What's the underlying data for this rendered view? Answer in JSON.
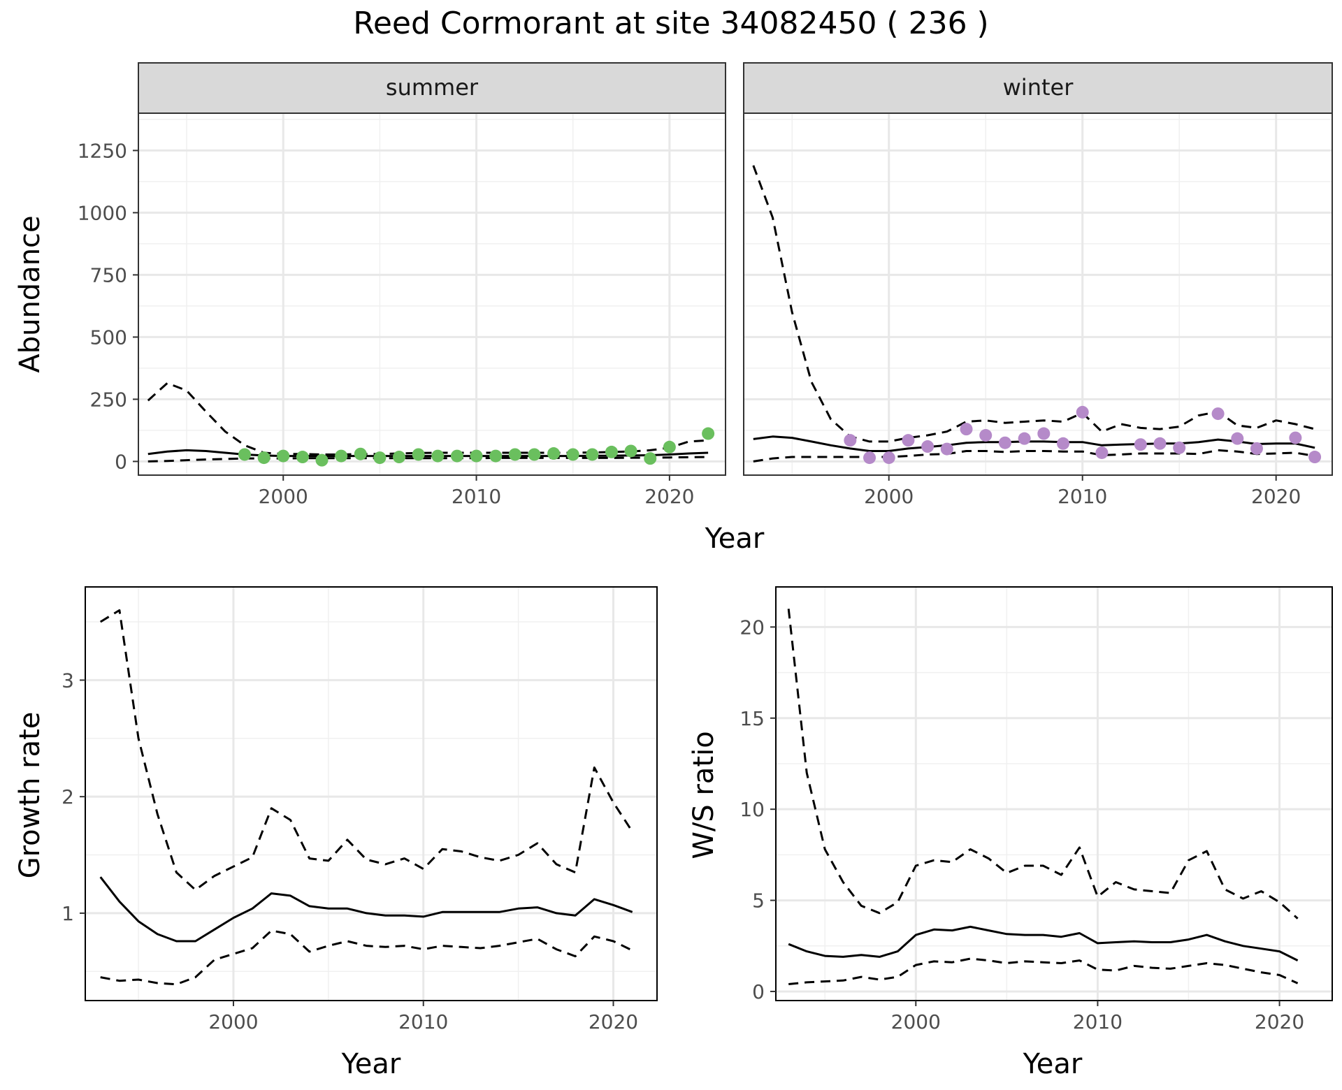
{
  "title": "Reed Cormorant at site 34082450 ( 236 )",
  "top_shared_xlabel": "Year",
  "chart_data": [
    {
      "type": "line",
      "panel": "abundance-summer",
      "strip_label": "summer",
      "ylabel": "Abundance",
      "xlim": [
        1992.5,
        2022.9
      ],
      "ylim": [
        -55,
        1400
      ],
      "x_ticks": [
        2000,
        2010,
        2020
      ],
      "y_ticks": [
        0,
        250,
        500,
        750,
        1000,
        1250
      ],
      "grid": true,
      "point_color": "#6abf5e",
      "series": [
        {
          "role": "mean",
          "style": "solid",
          "x": [
            1993,
            1994,
            1995,
            1996,
            1997,
            1998,
            1999,
            2000,
            2001,
            2002,
            2003,
            2004,
            2005,
            2006,
            2007,
            2008,
            2009,
            2010,
            2011,
            2012,
            2013,
            2014,
            2015,
            2016,
            2017,
            2018,
            2019,
            2020,
            2021,
            2022
          ],
          "y": [
            30,
            40,
            45,
            42,
            35,
            28,
            24,
            22,
            22,
            22,
            22,
            22,
            22,
            22,
            22,
            22,
            22,
            22,
            22,
            22,
            22,
            22,
            22,
            23,
            23,
            24,
            25,
            28,
            32,
            35
          ]
        },
        {
          "role": "upper",
          "style": "dashed",
          "x": [
            1993,
            1994,
            1995,
            1996,
            1997,
            1998,
            1999,
            2000,
            2001,
            2002,
            2003,
            2004,
            2005,
            2006,
            2007,
            2008,
            2009,
            2010,
            2011,
            2012,
            2013,
            2014,
            2015,
            2016,
            2017,
            2018,
            2019,
            2020,
            2021,
            2022
          ],
          "y": [
            245,
            315,
            285,
            200,
            120,
            65,
            35,
            30,
            30,
            28,
            28,
            30,
            30,
            32,
            34,
            35,
            35,
            35,
            35,
            35,
            35,
            35,
            35,
            36,
            38,
            40,
            45,
            55,
            80,
            85
          ]
        },
        {
          "role": "lower",
          "style": "dashed",
          "x": [
            1993,
            1994,
            1995,
            1996,
            1997,
            1998,
            1999,
            2000,
            2001,
            2002,
            2003,
            2004,
            2005,
            2006,
            2007,
            2008,
            2009,
            2010,
            2011,
            2012,
            2013,
            2014,
            2015,
            2016,
            2017,
            2018,
            2019,
            2020,
            2021,
            2022
          ],
          "y": [
            0,
            2,
            5,
            8,
            10,
            12,
            12,
            12,
            13,
            13,
            13,
            13,
            13,
            13,
            13,
            13,
            13,
            13,
            14,
            14,
            14,
            14,
            14,
            14,
            14,
            15,
            15,
            16,
            17,
            18
          ]
        },
        {
          "role": "observed",
          "style": "points",
          "x": [
            1998,
            1999,
            2000,
            2001,
            2002,
            2003,
            2004,
            2005,
            2006,
            2007,
            2008,
            2009,
            2010,
            2011,
            2012,
            2013,
            2014,
            2015,
            2016,
            2017,
            2018,
            2019,
            2020,
            2022
          ],
          "y": [
            28,
            15,
            22,
            18,
            5,
            22,
            30,
            15,
            18,
            28,
            22,
            22,
            22,
            22,
            28,
            28,
            32,
            28,
            28,
            38,
            42,
            12,
            58,
            112
          ]
        }
      ]
    },
    {
      "type": "line",
      "panel": "abundance-winter",
      "strip_label": "winter",
      "ylabel": "",
      "xlim": [
        1992.5,
        2022.9
      ],
      "ylim": [
        -55,
        1400
      ],
      "x_ticks": [
        2000,
        2010,
        2020
      ],
      "y_ticks": [
        0,
        250,
        500,
        750,
        1000,
        1250
      ],
      "grid": true,
      "point_color": "#b58ac9",
      "series": [
        {
          "role": "mean",
          "style": "solid",
          "x": [
            1993,
            1994,
            1995,
            1996,
            1997,
            1998,
            1999,
            2000,
            2001,
            2002,
            2003,
            2004,
            2005,
            2006,
            2007,
            2008,
            2009,
            2010,
            2011,
            2012,
            2013,
            2014,
            2015,
            2016,
            2017,
            2018,
            2019,
            2020,
            2021,
            2022
          ],
          "y": [
            90,
            100,
            95,
            80,
            65,
            52,
            42,
            42,
            52,
            58,
            65,
            75,
            78,
            78,
            80,
            80,
            78,
            78,
            65,
            68,
            70,
            72,
            72,
            78,
            88,
            80,
            70,
            72,
            72,
            55
          ]
        },
        {
          "role": "upper",
          "style": "dashed",
          "x": [
            1993,
            1994,
            1995,
            1996,
            1997,
            1998,
            1999,
            2000,
            2001,
            2002,
            2003,
            2004,
            2005,
            2006,
            2007,
            2008,
            2009,
            2010,
            2011,
            2012,
            2013,
            2014,
            2015,
            2016,
            2017,
            2018,
            2019,
            2020,
            2021,
            2022
          ],
          "y": [
            1190,
            980,
            600,
            320,
            170,
            100,
            80,
            80,
            95,
            105,
            120,
            160,
            165,
            155,
            160,
            165,
            160,
            195,
            120,
            150,
            135,
            130,
            140,
            185,
            200,
            145,
            135,
            165,
            150,
            130
          ]
        },
        {
          "role": "lower",
          "style": "dashed",
          "x": [
            1993,
            1994,
            1995,
            1996,
            1997,
            1998,
            1999,
            2000,
            2001,
            2002,
            2003,
            2004,
            2005,
            2006,
            2007,
            2008,
            2009,
            2010,
            2011,
            2012,
            2013,
            2014,
            2015,
            2016,
            2017,
            2018,
            2019,
            2020,
            2021,
            2022
          ],
          "y": [
            0,
            12,
            18,
            18,
            18,
            18,
            18,
            18,
            22,
            28,
            30,
            42,
            42,
            38,
            42,
            42,
            40,
            40,
            25,
            28,
            32,
            32,
            32,
            30,
            45,
            40,
            30,
            32,
            35,
            22
          ]
        },
        {
          "role": "observed",
          "style": "points",
          "x": [
            1998,
            1999,
            2000,
            2001,
            2002,
            2003,
            2004,
            2005,
            2006,
            2007,
            2008,
            2009,
            2010,
            2011,
            2013,
            2014,
            2015,
            2017,
            2018,
            2019,
            2021,
            2022
          ],
          "y": [
            85,
            15,
            15,
            85,
            60,
            50,
            130,
            105,
            75,
            92,
            112,
            72,
            198,
            35,
            68,
            72,
            55,
            192,
            92,
            52,
            95,
            18
          ]
        }
      ]
    },
    {
      "type": "line",
      "panel": "growth-rate",
      "ylabel": "Growth rate",
      "xlabel": "Year",
      "xlim": [
        1992.2,
        2022.3
      ],
      "ylim": [
        0.25,
        3.8
      ],
      "x_ticks": [
        2000,
        2010,
        2020
      ],
      "y_ticks": [
        1,
        2,
        3
      ],
      "grid": true,
      "series": [
        {
          "role": "mean",
          "style": "solid",
          "x": [
            1993,
            1994,
            1995,
            1996,
            1997,
            1998,
            1999,
            2000,
            2001,
            2002,
            2003,
            2004,
            2005,
            2006,
            2007,
            2008,
            2009,
            2010,
            2011,
            2012,
            2013,
            2014,
            2015,
            2016,
            2017,
            2018,
            2019,
            2020,
            2021
          ],
          "y": [
            1.31,
            1.1,
            0.93,
            0.82,
            0.76,
            0.76,
            0.86,
            0.96,
            1.04,
            1.17,
            1.15,
            1.06,
            1.04,
            1.04,
            1.0,
            0.98,
            0.98,
            0.97,
            1.01,
            1.01,
            1.01,
            1.01,
            1.04,
            1.05,
            1.0,
            0.98,
            1.12,
            1.07,
            1.01
          ]
        },
        {
          "role": "upper",
          "style": "dashed",
          "x": [
            1993,
            1994,
            1995,
            1996,
            1997,
            1998,
            1999,
            2000,
            2001,
            2002,
            2003,
            2004,
            2005,
            2006,
            2007,
            2008,
            2009,
            2010,
            2011,
            2012,
            2013,
            2014,
            2015,
            2016,
            2017,
            2018,
            2019,
            2020,
            2021
          ],
          "y": [
            3.5,
            3.6,
            2.5,
            1.85,
            1.35,
            1.2,
            1.32,
            1.4,
            1.48,
            1.9,
            1.8,
            1.47,
            1.45,
            1.63,
            1.46,
            1.42,
            1.47,
            1.38,
            1.55,
            1.53,
            1.48,
            1.45,
            1.5,
            1.6,
            1.42,
            1.35,
            2.25,
            1.95,
            1.7
          ]
        },
        {
          "role": "lower",
          "style": "dashed",
          "x": [
            1993,
            1994,
            1995,
            1996,
            1997,
            1998,
            1999,
            2000,
            2001,
            2002,
            2003,
            2004,
            2005,
            2006,
            2007,
            2008,
            2009,
            2010,
            2011,
            2012,
            2013,
            2014,
            2015,
            2016,
            2017,
            2018,
            2019,
            2020,
            2021
          ],
          "y": [
            0.45,
            0.42,
            0.43,
            0.4,
            0.39,
            0.45,
            0.6,
            0.65,
            0.7,
            0.85,
            0.82,
            0.67,
            0.72,
            0.76,
            0.72,
            0.71,
            0.72,
            0.69,
            0.72,
            0.71,
            0.7,
            0.72,
            0.75,
            0.78,
            0.69,
            0.63,
            0.8,
            0.76,
            0.68
          ]
        }
      ]
    },
    {
      "type": "line",
      "panel": "ws-ratio",
      "ylabel": "W/S ratio",
      "xlabel": "Year",
      "xlim": [
        1992.3,
        2022.9
      ],
      "ylim": [
        -0.5,
        22.2
      ],
      "x_ticks": [
        2000,
        2010,
        2020
      ],
      "y_ticks": [
        0,
        5,
        10,
        15,
        20
      ],
      "grid": true,
      "series": [
        {
          "role": "mean",
          "style": "solid",
          "x": [
            1993,
            1994,
            1995,
            1996,
            1997,
            1998,
            1999,
            2000,
            2001,
            2002,
            2003,
            2004,
            2005,
            2006,
            2007,
            2008,
            2009,
            2010,
            2011,
            2012,
            2013,
            2014,
            2015,
            2016,
            2017,
            2018,
            2019,
            2020,
            2021
          ],
          "y": [
            2.6,
            2.2,
            1.95,
            1.9,
            2.0,
            1.9,
            2.2,
            3.1,
            3.4,
            3.35,
            3.55,
            3.35,
            3.15,
            3.1,
            3.1,
            3.0,
            3.2,
            2.65,
            2.7,
            2.75,
            2.7,
            2.7,
            2.85,
            3.1,
            2.75,
            2.5,
            2.35,
            2.2,
            1.7
          ]
        },
        {
          "role": "upper",
          "style": "dashed",
          "x": [
            1993,
            1994,
            1995,
            1996,
            1997,
            1998,
            1999,
            2000,
            2001,
            2002,
            2003,
            2004,
            2005,
            2006,
            2007,
            2008,
            2009,
            2010,
            2011,
            2012,
            2013,
            2014,
            2015,
            2016,
            2017,
            2018,
            2019,
            2020,
            2021
          ],
          "y": [
            21.0,
            12.0,
            7.8,
            6.0,
            4.7,
            4.3,
            4.9,
            6.9,
            7.2,
            7.1,
            7.8,
            7.3,
            6.5,
            6.9,
            6.9,
            6.4,
            7.9,
            5.2,
            6.0,
            5.6,
            5.5,
            5.4,
            7.2,
            7.7,
            5.6,
            5.1,
            5.5,
            4.9,
            4.0
          ]
        },
        {
          "role": "lower",
          "style": "dashed",
          "x": [
            1993,
            1994,
            1995,
            1996,
            1997,
            1998,
            1999,
            2000,
            2001,
            2002,
            2003,
            2004,
            2005,
            2006,
            2007,
            2008,
            2009,
            2010,
            2011,
            2012,
            2013,
            2014,
            2015,
            2016,
            2017,
            2018,
            2019,
            2020,
            2021
          ],
          "y": [
            0.4,
            0.5,
            0.55,
            0.6,
            0.8,
            0.65,
            0.8,
            1.45,
            1.65,
            1.6,
            1.8,
            1.7,
            1.55,
            1.65,
            1.6,
            1.55,
            1.7,
            1.2,
            1.15,
            1.4,
            1.3,
            1.25,
            1.4,
            1.55,
            1.45,
            1.25,
            1.05,
            0.9,
            0.45
          ]
        }
      ]
    }
  ]
}
